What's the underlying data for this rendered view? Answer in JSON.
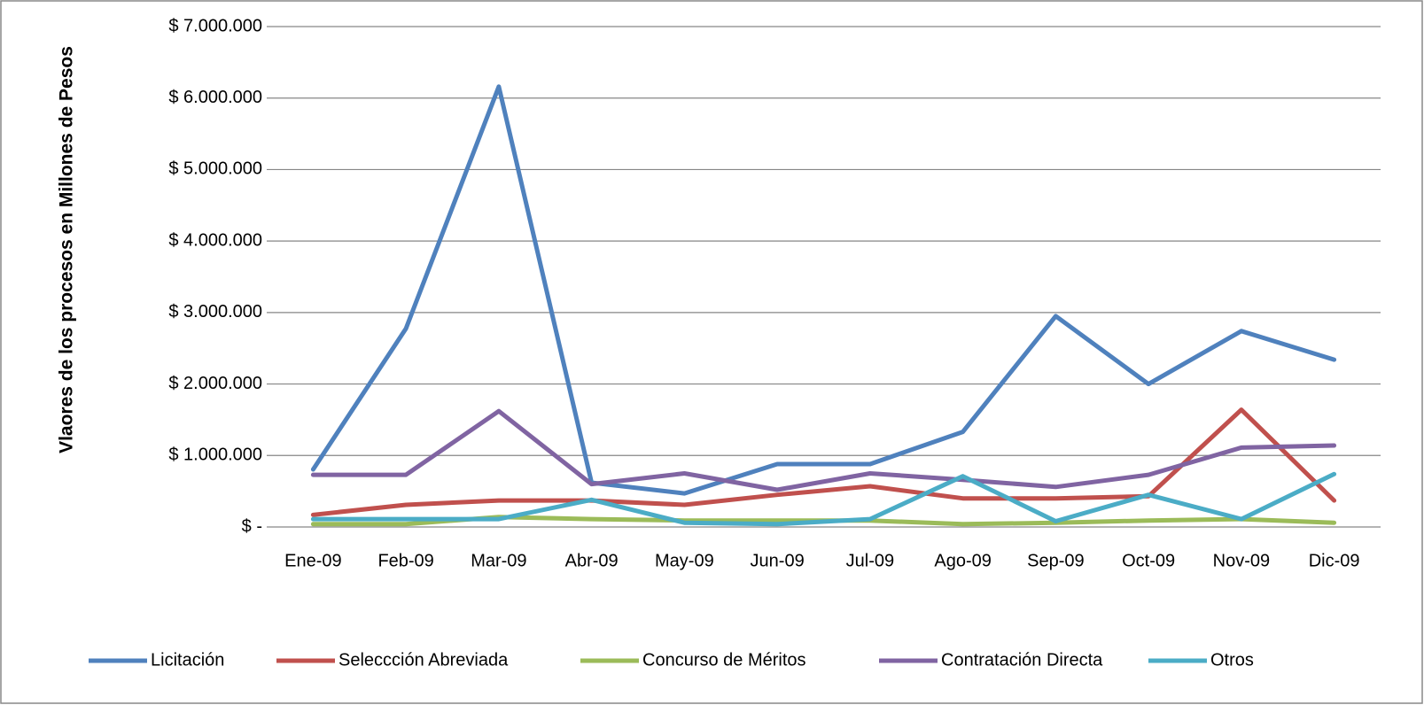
{
  "chart_data": {
    "type": "line",
    "y_label": "Vlaores de los procesos en Millones de Pesos",
    "categories": [
      "Ene-09",
      "Feb-09",
      "Mar-09",
      "Abr-09",
      "May-09",
      "Jun-09",
      "Jul-09",
      "Ago-09",
      "Sep-09",
      "Oct-09",
      "Nov-09",
      "Dic-09"
    ],
    "series": [
      {
        "name": "Licitación",
        "color": "#4f81bd",
        "values": [
          805000,
          2775000,
          6160000,
          620000,
          470000,
          880000,
          880000,
          1330000,
          2950000,
          2000000,
          2740000,
          2340000
        ]
      },
      {
        "name": "Seleccción Abreviada",
        "color": "#c0504d",
        "values": [
          170000,
          310000,
          370000,
          370000,
          310000,
          450000,
          570000,
          400000,
          400000,
          430000,
          1640000,
          370000
        ]
      },
      {
        "name": "Concurso de Méritos",
        "color": "#9bbb59",
        "values": [
          40000,
          40000,
          140000,
          110000,
          90000,
          90000,
          90000,
          40000,
          60000,
          90000,
          110000,
          60000
        ]
      },
      {
        "name": "Contratación Directa",
        "color": "#8064a2",
        "values": [
          730000,
          730000,
          1620000,
          600000,
          750000,
          520000,
          750000,
          660000,
          560000,
          730000,
          1110000,
          1140000
        ]
      },
      {
        "name": "Otros",
        "color": "#4bacc6",
        "values": [
          110000,
          110000,
          110000,
          380000,
          60000,
          40000,
          110000,
          710000,
          80000,
          450000,
          110000,
          740000
        ]
      }
    ],
    "ylim": [
      0,
      7000000
    ],
    "yticks": [
      {
        "value": 0,
        "label": "$ -"
      },
      {
        "value": 1000000,
        "label": "$ 1.000.000"
      },
      {
        "value": 2000000,
        "label": "$ 2.000.000"
      },
      {
        "value": 3000000,
        "label": "$ 3.000.000"
      },
      {
        "value": 4000000,
        "label": "$ 4.000.000"
      },
      {
        "value": 5000000,
        "label": "$ 5.000.000"
      },
      {
        "value": 6000000,
        "label": "$ 6.000.000"
      },
      {
        "value": 7000000,
        "label": "$ 7.000.000"
      }
    ],
    "grid": true,
    "legend": "bottom"
  }
}
